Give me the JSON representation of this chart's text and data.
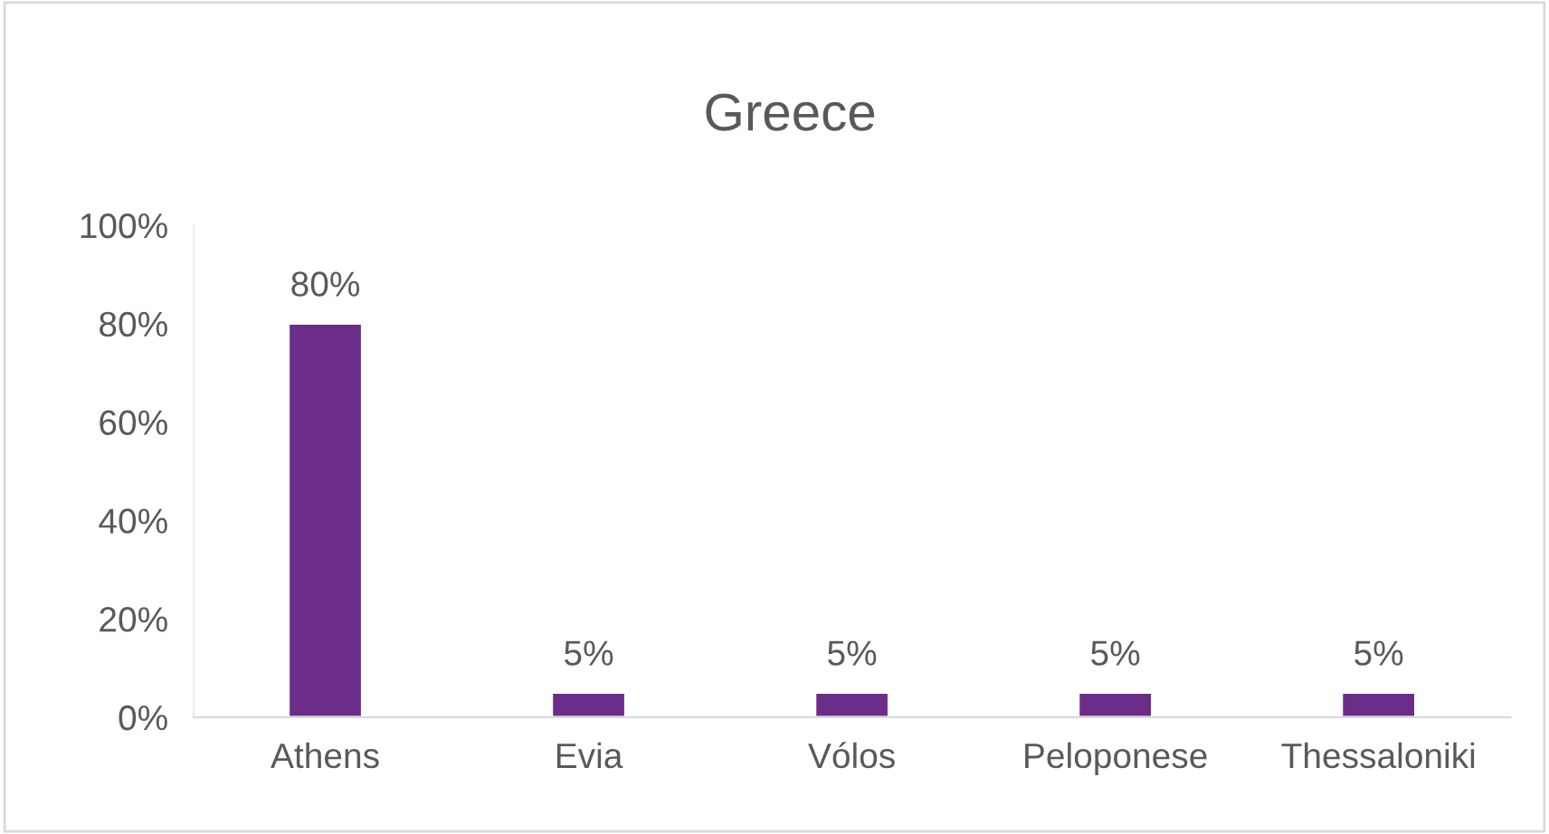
{
  "chart_data": {
    "type": "bar",
    "title": "Greece",
    "categories": [
      "Athens",
      "Evia",
      "Vólos",
      "Peloponese",
      "Thessaloniki"
    ],
    "values": [
      80,
      5,
      5,
      5,
      5
    ],
    "value_labels": [
      "80%",
      "5%",
      "5%",
      "5%",
      "5%"
    ],
    "color": "#6b2d87",
    "ylim": [
      0,
      100
    ],
    "yticks": [
      {
        "value": 0,
        "label": "0%"
      },
      {
        "value": 20,
        "label": "20%"
      },
      {
        "value": 40,
        "label": "40%"
      },
      {
        "value": 60,
        "label": "60%"
      },
      {
        "value": 80,
        "label": "80%"
      },
      {
        "value": 100,
        "label": "100%"
      }
    ],
    "grid": false
  }
}
